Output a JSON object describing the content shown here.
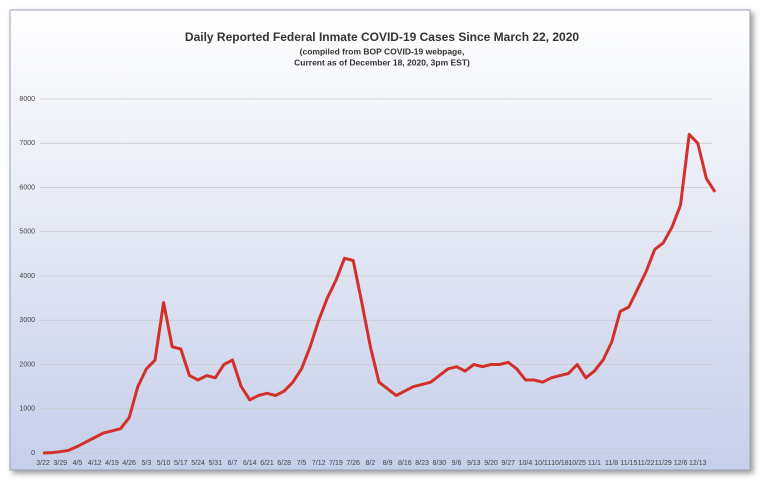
{
  "chart_data": {
    "type": "line",
    "title": "Daily Reported Federal Inmate COVID-19 Cases Since March 22, 2020",
    "subtitle": [
      "(compiled from BOP COVID-19 webpage,",
      "Current as of December 18, 2020, 3pm EST)"
    ],
    "categories": [
      "3/22",
      null,
      "3/29",
      null,
      "4/5",
      null,
      "4/12",
      null,
      "4/19",
      null,
      "4/26",
      null,
      "5/3",
      null,
      "5/10",
      null,
      "5/17",
      null,
      "5/24",
      null,
      "5/31",
      null,
      "6/7",
      null,
      "6/14",
      null,
      "6/21",
      null,
      "6/28",
      null,
      "7/5",
      null,
      "7/12",
      null,
      "7/19",
      null,
      "7/26",
      null,
      "8/2",
      null,
      "8/9",
      null,
      "8/16",
      null,
      "8/23",
      null,
      "8/30",
      null,
      "9/6",
      null,
      "9/13",
      null,
      "9/20",
      null,
      "9/27",
      null,
      "10/4",
      null,
      "10/11",
      null,
      "10/18",
      null,
      "10/25",
      null,
      "11/1",
      null,
      "11/8",
      null,
      "11/15",
      null,
      "11/22",
      null,
      "11/29",
      null,
      "12/6",
      null,
      "12/13",
      null,
      null
    ],
    "values": [
      0,
      10,
      30,
      60,
      150,
      250,
      350,
      450,
      500,
      550,
      800,
      1500,
      1900,
      2100,
      3400,
      2400,
      2350,
      1750,
      1650,
      1750,
      1700,
      2000,
      2100,
      1500,
      1200,
      1300,
      1350,
      1300,
      1400,
      1600,
      1900,
      2400,
      3000,
      3500,
      3900,
      4400,
      4350,
      3400,
      2400,
      1600,
      1450,
      1300,
      1400,
      1500,
      1550,
      1600,
      1750,
      1900,
      1950,
      1850,
      2000,
      1950,
      2000,
      2000,
      2050,
      1900,
      1650,
      1650,
      1600,
      1700,
      1750,
      1800,
      2000,
      1700,
      1850,
      2100,
      2500,
      3200,
      3300,
      3700,
      4100,
      4600,
      4750,
      5100,
      5600,
      7200,
      7000,
      6200,
      5900
    ],
    "color": "#d2302a",
    "ylim": [
      0,
      8000
    ],
    "yticks": [
      0,
      1000,
      2000,
      3000,
      4000,
      5000,
      6000,
      7000,
      8000
    ],
    "grid": true
  }
}
